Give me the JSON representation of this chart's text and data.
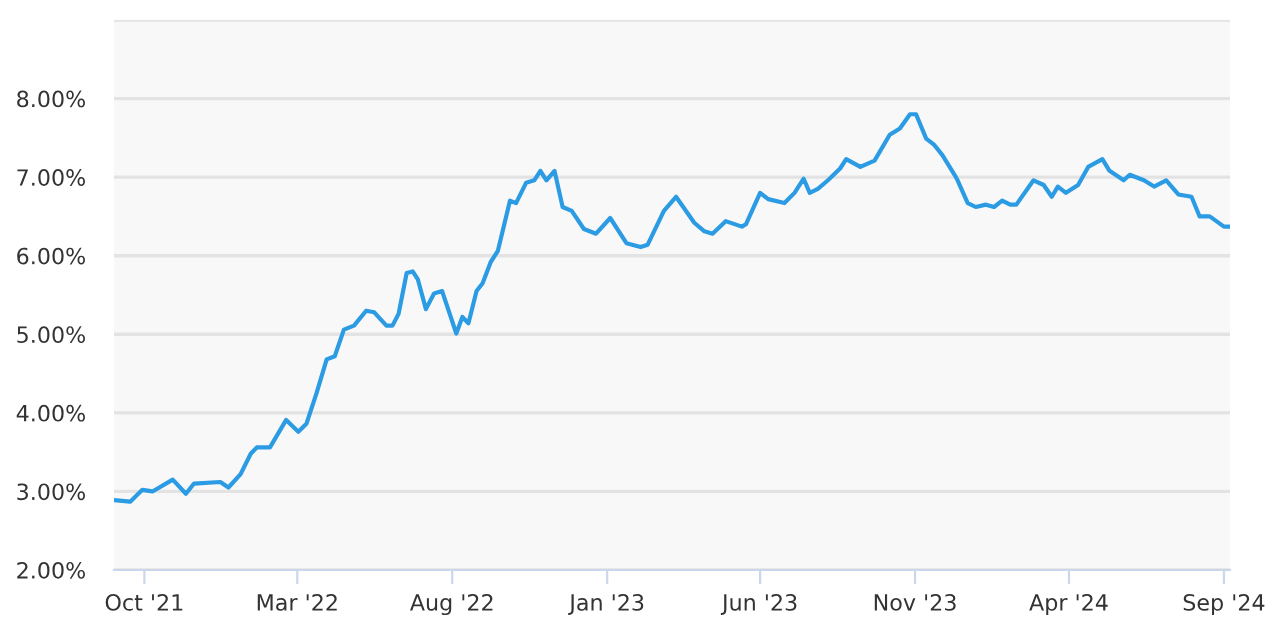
{
  "chart_data": {
    "type": "line",
    "x": [
      "2021-09-01",
      "2021-09-17",
      "2021-09-29",
      "2021-10-09",
      "2021-10-29",
      "2021-11-11",
      "2021-11-19",
      "2021-12-15",
      "2021-12-23",
      "2022-01-04",
      "2022-01-14",
      "2022-01-20",
      "2022-02-02",
      "2022-02-18",
      "2022-03-02",
      "2022-03-10",
      "2022-03-20",
      "2022-03-30",
      "2022-04-07",
      "2022-04-16",
      "2022-04-26",
      "2022-05-08",
      "2022-05-16",
      "2022-05-28",
      "2022-06-03",
      "2022-06-09",
      "2022-06-17",
      "2022-06-23",
      "2022-06-28",
      "2022-07-06",
      "2022-07-14",
      "2022-07-22",
      "2022-08-05",
      "2022-08-11",
      "2022-08-17",
      "2022-08-25",
      "2022-08-31",
      "2022-09-08",
      "2022-09-15",
      "2022-09-27",
      "2022-10-03",
      "2022-10-13",
      "2022-10-21",
      "2022-10-27",
      "2022-11-02",
      "2022-11-10",
      "2022-11-18",
      "2022-11-27",
      "2022-12-09",
      "2022-12-21",
      "2023-01-04",
      "2023-01-20",
      "2023-02-03",
      "2023-02-10",
      "2023-02-26",
      "2023-03-10",
      "2023-03-28",
      "2023-04-07",
      "2023-04-15",
      "2023-04-28",
      "2023-05-14",
      "2023-05-18",
      "2023-06-01",
      "2023-06-09",
      "2023-06-25",
      "2023-07-05",
      "2023-07-14",
      "2023-07-20",
      "2023-07-28",
      "2023-08-07",
      "2023-08-19",
      "2023-08-25",
      "2023-09-08",
      "2023-09-22",
      "2023-10-07",
      "2023-10-17",
      "2023-10-27",
      "2023-11-02",
      "2023-11-12",
      "2023-11-20",
      "2023-11-28",
      "2023-12-10",
      "2023-12-13",
      "2023-12-23",
      "2023-12-31",
      "2024-01-10",
      "2024-01-18",
      "2024-01-26",
      "2024-02-03",
      "2024-02-09",
      "2024-02-26",
      "2024-03-07",
      "2024-03-15",
      "2024-03-21",
      "2024-03-29",
      "2024-04-10",
      "2024-04-20",
      "2024-05-04",
      "2024-05-11",
      "2024-05-25",
      "2024-05-31",
      "2024-06-14",
      "2024-06-24",
      "2024-07-06",
      "2024-07-18",
      "2024-07-31",
      "2024-08-08",
      "2024-08-18",
      "2024-09-01",
      "2024-09-07"
    ],
    "series": [
      {
        "color": "#2b9be3",
        "values": [
          2.89,
          2.87,
          3.02,
          3.0,
          3.15,
          2.97,
          3.1,
          3.12,
          3.05,
          3.22,
          3.48,
          3.56,
          3.56,
          3.91,
          3.76,
          3.86,
          4.25,
          4.68,
          4.72,
          5.06,
          5.11,
          5.3,
          5.28,
          5.11,
          5.11,
          5.26,
          5.78,
          5.8,
          5.7,
          5.32,
          5.52,
          5.55,
          5.01,
          5.22,
          5.14,
          5.55,
          5.65,
          5.92,
          6.06,
          6.7,
          6.67,
          6.93,
          6.96,
          7.08,
          6.96,
          7.08,
          6.62,
          6.57,
          6.34,
          6.28,
          6.48,
          6.16,
          6.11,
          6.14,
          6.57,
          6.75,
          6.42,
          6.31,
          6.28,
          6.44,
          6.37,
          6.4,
          6.8,
          6.72,
          6.67,
          6.8,
          6.98,
          6.8,
          6.85,
          6.96,
          7.11,
          7.23,
          7.13,
          7.21,
          7.54,
          7.62,
          7.8,
          7.8,
          7.49,
          7.41,
          7.28,
          7.03,
          6.96,
          6.67,
          6.62,
          6.65,
          6.62,
          6.7,
          6.65,
          6.65,
          6.96,
          6.9,
          6.75,
          6.88,
          6.8,
          6.9,
          7.13,
          7.23,
          7.08,
          6.96,
          7.03,
          6.96,
          6.88,
          6.96,
          6.78,
          6.75,
          6.5,
          6.5,
          6.37,
          6.37
        ]
      }
    ],
    "xlim": [
      "2021-09-01",
      "2024-09-07"
    ],
    "xticks": [
      {
        "value": "2021-10-01",
        "label": "Oct '21"
      },
      {
        "value": "2022-03-01",
        "label": "Mar '22"
      },
      {
        "value": "2022-08-01",
        "label": "Aug '22"
      },
      {
        "value": "2023-01-01",
        "label": "Jan '23"
      },
      {
        "value": "2023-06-01",
        "label": "Jun '23"
      },
      {
        "value": "2023-11-01",
        "label": "Nov '23"
      },
      {
        "value": "2024-04-01",
        "label": "Apr '24"
      },
      {
        "value": "2024-09-01",
        "label": "Sep '24"
      }
    ],
    "ylim": [
      2,
      9
    ],
    "yticks": [
      {
        "value": 2,
        "label": "2.00%"
      },
      {
        "value": 3,
        "label": "3.00%"
      },
      {
        "value": 4,
        "label": "4.00%"
      },
      {
        "value": 5,
        "label": "5.00%"
      },
      {
        "value": 6,
        "label": "6.00%"
      },
      {
        "value": 7,
        "label": "7.00%"
      },
      {
        "value": 8,
        "label": "8.00%"
      },
      {
        "value": 9,
        "label": null
      }
    ],
    "grid": "y",
    "legend": false,
    "marker": "none",
    "line_style": "solid"
  }
}
